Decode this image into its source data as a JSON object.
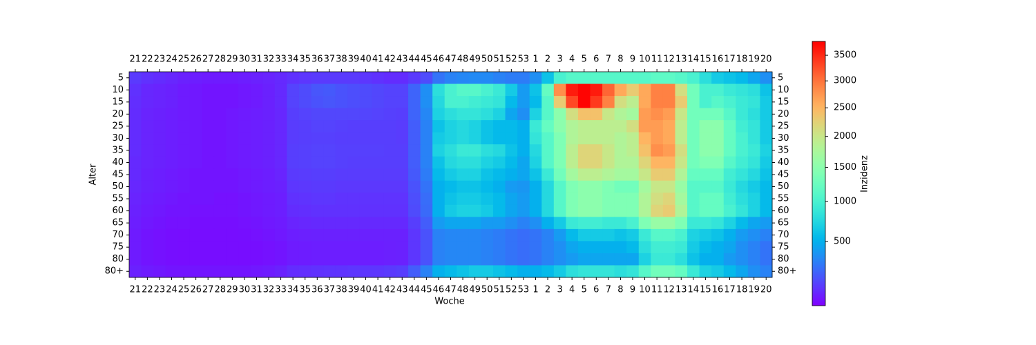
{
  "chart_data": {
    "type": "heatmap",
    "x_label": "Woche",
    "y_label": "Alter",
    "colorbar_label": "Inzidenz",
    "colormap": "rainbow",
    "norm": "power",
    "gamma": 0.7,
    "zlim": [
      0,
      3780
    ],
    "colorbar_ticks": [
      500,
      1000,
      1500,
      2000,
      2500,
      3000,
      3500
    ],
    "columns": [
      "21",
      "22",
      "23",
      "24",
      "25",
      "26",
      "27",
      "28",
      "29",
      "30",
      "31",
      "32",
      "33",
      "34",
      "35",
      "36",
      "37",
      "38",
      "39",
      "40",
      "41",
      "42",
      "43",
      "44",
      "45",
      "46",
      "47",
      "48",
      "49",
      "50",
      "51",
      "52",
      "53",
      "1",
      "2",
      "3",
      "4",
      "5",
      "6",
      "7",
      "8",
      "9",
      "10",
      "11",
      "12",
      "13",
      "14",
      "15",
      "16",
      "17",
      "18",
      "19",
      "20"
    ],
    "rows": [
      "5",
      "10",
      "15",
      "20",
      "25",
      "30",
      "35",
      "40",
      "45",
      "50",
      "55",
      "60",
      "65",
      "70",
      "75",
      "80",
      "80+"
    ],
    "z": [
      [
        90,
        70,
        60,
        50,
        40,
        35,
        30,
        30,
        30,
        35,
        40,
        45,
        55,
        70,
        80,
        90,
        90,
        90,
        90,
        80,
        70,
        60,
        60,
        90,
        130,
        250,
        300,
        320,
        330,
        330,
        300,
        280,
        280,
        350,
        600,
        1000,
        1100,
        1100,
        1100,
        1100,
        1100,
        1100,
        1100,
        1150,
        1150,
        1100,
        1000,
        800,
        650,
        600,
        550,
        450,
        350
      ],
      [
        70,
        50,
        45,
        40,
        30,
        25,
        20,
        20,
        20,
        25,
        30,
        40,
        55,
        110,
        130,
        160,
        170,
        150,
        140,
        130,
        120,
        110,
        110,
        200,
        350,
        800,
        1000,
        1100,
        1100,
        1000,
        900,
        650,
        400,
        600,
        1200,
        2800,
        3600,
        3750,
        3600,
        3100,
        2600,
        2300,
        2600,
        2900,
        2900,
        2100,
        1300,
        1000,
        1000,
        900,
        850,
        800,
        600
      ],
      [
        65,
        50,
        45,
        40,
        30,
        25,
        20,
        20,
        20,
        25,
        30,
        40,
        55,
        110,
        130,
        150,
        160,
        150,
        140,
        130,
        120,
        110,
        110,
        200,
        350,
        750,
        1000,
        1000,
        950,
        900,
        850,
        550,
        400,
        550,
        1100,
        2300,
        3300,
        3750,
        3400,
        2900,
        2100,
        1900,
        2600,
        2900,
        2900,
        2300,
        1300,
        1000,
        1100,
        1000,
        900,
        850,
        650
      ],
      [
        60,
        45,
        40,
        35,
        30,
        25,
        20,
        20,
        25,
        30,
        35,
        40,
        50,
        100,
        110,
        120,
        120,
        120,
        120,
        115,
        110,
        105,
        100,
        200,
        320,
        700,
        800,
        850,
        850,
        800,
        700,
        450,
        350,
        700,
        1100,
        1500,
        2100,
        2400,
        2400,
        2000,
        1800,
        1700,
        2700,
        2800,
        2700,
        2000,
        1300,
        1300,
        1300,
        1100,
        900,
        800,
        650
      ],
      [
        60,
        45,
        40,
        35,
        30,
        25,
        20,
        20,
        25,
        30,
        35,
        40,
        50,
        95,
        100,
        110,
        110,
        105,
        100,
        100,
        100,
        100,
        95,
        180,
        300,
        600,
        700,
        750,
        700,
        600,
        550,
        550,
        500,
        900,
        1200,
        1500,
        1800,
        1900,
        1900,
        1900,
        1900,
        2100,
        2700,
        2700,
        2600,
        1900,
        1300,
        1500,
        1500,
        1200,
        950,
        850,
        650
      ],
      [
        60,
        45,
        40,
        35,
        30,
        25,
        20,
        20,
        25,
        30,
        35,
        40,
        50,
        95,
        100,
        105,
        105,
        100,
        100,
        100,
        100,
        100,
        95,
        180,
        300,
        650,
        700,
        750,
        700,
        600,
        550,
        550,
        500,
        850,
        1100,
        1400,
        1800,
        1900,
        1900,
        1900,
        1800,
        1900,
        2500,
        2700,
        2600,
        1900,
        1300,
        1500,
        1500,
        1200,
        1000,
        850,
        650
      ],
      [
        60,
        45,
        40,
        35,
        30,
        25,
        20,
        20,
        25,
        30,
        35,
        40,
        50,
        100,
        105,
        110,
        110,
        105,
        105,
        105,
        105,
        100,
        100,
        180,
        300,
        700,
        800,
        900,
        900,
        800,
        750,
        600,
        500,
        750,
        1100,
        1400,
        1900,
        2200,
        2200,
        2000,
        1800,
        1900,
        2400,
        2800,
        2700,
        2100,
        1300,
        1500,
        1500,
        1200,
        1000,
        900,
        700
      ],
      [
        55,
        45,
        40,
        35,
        30,
        25,
        20,
        20,
        25,
        30,
        35,
        40,
        50,
        100,
        105,
        110,
        110,
        105,
        100,
        100,
        100,
        100,
        100,
        180,
        300,
        600,
        750,
        800,
        800,
        700,
        650,
        550,
        450,
        700,
        1100,
        1400,
        1900,
        2200,
        2200,
        2000,
        1800,
        1800,
        2200,
        2500,
        2500,
        2000,
        1300,
        1400,
        1400,
        1100,
        950,
        850,
        650
      ],
      [
        55,
        40,
        35,
        30,
        25,
        20,
        20,
        20,
        20,
        25,
        30,
        35,
        45,
        90,
        95,
        100,
        100,
        95,
        95,
        95,
        95,
        95,
        95,
        170,
        280,
        550,
        650,
        700,
        700,
        600,
        550,
        500,
        450,
        600,
        900,
        1300,
        1700,
        1900,
        1900,
        1800,
        1700,
        1700,
        2000,
        2300,
        2300,
        1800,
        1200,
        1200,
        1200,
        950,
        850,
        750,
        600
      ],
      [
        50,
        40,
        35,
        30,
        25,
        20,
        20,
        20,
        20,
        25,
        30,
        35,
        40,
        80,
        85,
        90,
        90,
        85,
        85,
        85,
        85,
        85,
        85,
        150,
        250,
        500,
        550,
        600,
        600,
        550,
        500,
        400,
        380,
        500,
        750,
        1100,
        1400,
        1500,
        1500,
        1400,
        1300,
        1300,
        1700,
        2000,
        2000,
        1600,
        1100,
        1100,
        1100,
        900,
        750,
        650,
        550
      ],
      [
        45,
        35,
        30,
        25,
        20,
        20,
        20,
        15,
        15,
        20,
        25,
        30,
        35,
        70,
        75,
        80,
        80,
        75,
        75,
        75,
        75,
        75,
        75,
        140,
        230,
        500,
        600,
        650,
        650,
        600,
        550,
        450,
        400,
        500,
        750,
        1100,
        1400,
        1500,
        1500,
        1400,
        1400,
        1400,
        1800,
        2100,
        2200,
        1700,
        1100,
        1200,
        1200,
        950,
        800,
        700,
        550
      ],
      [
        40,
        30,
        25,
        20,
        20,
        15,
        15,
        15,
        15,
        20,
        25,
        30,
        35,
        60,
        65,
        70,
        70,
        70,
        70,
        70,
        70,
        70,
        70,
        130,
        220,
        500,
        650,
        700,
        700,
        650,
        550,
        450,
        400,
        500,
        750,
        1100,
        1400,
        1500,
        1500,
        1400,
        1400,
        1400,
        1800,
        2200,
        2300,
        1800,
        1100,
        1200,
        1200,
        1000,
        850,
        700,
        550
      ],
      [
        35,
        25,
        20,
        15,
        15,
        12,
        12,
        12,
        12,
        15,
        20,
        25,
        30,
        45,
        50,
        55,
        55,
        55,
        55,
        55,
        55,
        55,
        55,
        100,
        180,
        400,
        450,
        450,
        450,
        400,
        400,
        350,
        300,
        350,
        500,
        650,
        900,
        950,
        950,
        900,
        900,
        1000,
        1400,
        1600,
        1600,
        1400,
        900,
        900,
        850,
        700,
        550,
        450,
        400
      ],
      [
        30,
        20,
        15,
        12,
        10,
        10,
        10,
        10,
        10,
        12,
        15,
        20,
        25,
        35,
        38,
        40,
        40,
        40,
        40,
        40,
        40,
        40,
        40,
        80,
        150,
        300,
        320,
        320,
        320,
        300,
        280,
        250,
        230,
        250,
        300,
        400,
        550,
        650,
        650,
        650,
        600,
        650,
        900,
        1100,
        1100,
        1000,
        700,
        650,
        600,
        500,
        400,
        350,
        300
      ],
      [
        30,
        20,
        15,
        12,
        10,
        10,
        10,
        10,
        10,
        10,
        12,
        15,
        20,
        30,
        32,
        35,
        35,
        35,
        35,
        35,
        35,
        38,
        40,
        80,
        150,
        300,
        320,
        320,
        320,
        300,
        280,
        250,
        230,
        250,
        300,
        350,
        450,
        500,
        500,
        500,
        500,
        550,
        800,
        950,
        950,
        900,
        650,
        550,
        500,
        450,
        350,
        300,
        250
      ],
      [
        30,
        20,
        15,
        12,
        10,
        10,
        10,
        10,
        10,
        10,
        12,
        15,
        20,
        30,
        32,
        35,
        35,
        35,
        35,
        35,
        35,
        38,
        40,
        80,
        150,
        300,
        320,
        320,
        320,
        300,
        280,
        250,
        230,
        250,
        300,
        350,
        400,
        450,
        450,
        450,
        450,
        450,
        700,
        900,
        900,
        800,
        600,
        500,
        500,
        400,
        350,
        300,
        250
      ],
      [
        40,
        30,
        25,
        20,
        20,
        20,
        20,
        20,
        20,
        20,
        25,
        30,
        40,
        60,
        65,
        70,
        75,
        75,
        80,
        80,
        80,
        90,
        100,
        180,
        300,
        500,
        550,
        600,
        650,
        650,
        600,
        550,
        500,
        500,
        550,
        650,
        800,
        850,
        850,
        850,
        800,
        850,
        1100,
        1300,
        1300,
        1200,
        900,
        700,
        650,
        550,
        450,
        350,
        300
      ]
    ]
  }
}
